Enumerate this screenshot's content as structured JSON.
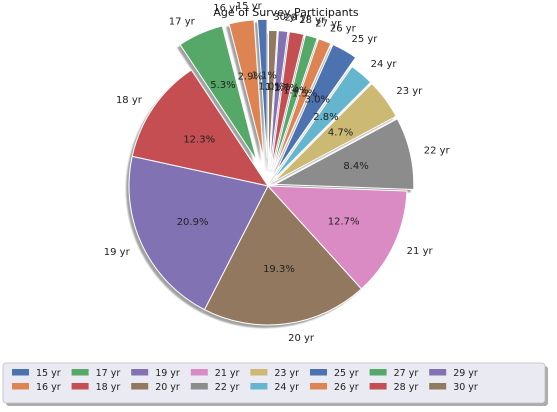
{
  "chart_data": {
    "type": "pie",
    "title": "Age of Survey Participants",
    "startangle_deg": 90,
    "counterclock": true,
    "shadow": true,
    "legend": {
      "placement": "bottom",
      "ncol": 9
    },
    "slices": [
      {
        "label": "15 yr",
        "value": 1.1,
        "pct_label": "1.1%",
        "color": "#4c72b0",
        "explode": 0.2
      },
      {
        "label": "16 yr",
        "value": 2.9,
        "pct_label": "2.9%",
        "color": "#dd8452",
        "explode": 0.2
      },
      {
        "label": "17 yr",
        "value": 5.3,
        "pct_label": "5.3%",
        "color": "#55a868",
        "explode": 0.2
      },
      {
        "label": "18 yr",
        "value": 12.3,
        "pct_label": "12.3%",
        "color": "#c44e52",
        "explode": 0
      },
      {
        "label": "19 yr",
        "value": 20.9,
        "pct_label": "20.9%",
        "color": "#8172b3",
        "explode": 0
      },
      {
        "label": "20 yr",
        "value": 19.3,
        "pct_label": "19.3%",
        "color": "#937860",
        "explode": 0
      },
      {
        "label": "21 yr",
        "value": 12.7,
        "pct_label": "12.7%",
        "color": "#da8bc3",
        "explode": 0
      },
      {
        "label": "22 yr",
        "value": 8.4,
        "pct_label": "8.4%",
        "color": "#8c8c8c",
        "explode": 0.05
      },
      {
        "label": "23 yr",
        "value": 4.7,
        "pct_label": "4.7%",
        "color": "#ccb974",
        "explode": 0.05
      },
      {
        "label": "24 yr",
        "value": 2.8,
        "pct_label": "2.8%",
        "color": "#64b5cd",
        "explode": 0.05
      },
      {
        "label": "25 yr",
        "value": 3.0,
        "pct_label": "3.0%",
        "color": "#4c72b0",
        "explode": 0.12
      },
      {
        "label": "26 yr",
        "value": 1.5,
        "pct_label": "1.5%",
        "color": "#dd8452",
        "explode": 0.12
      },
      {
        "label": "27 yr",
        "value": 1.4,
        "pct_label": "1.4%",
        "color": "#55a868",
        "explode": 0.12
      },
      {
        "label": "28 yr",
        "value": 1.7,
        "pct_label": "1.7%",
        "color": "#c44e52",
        "explode": 0.12
      },
      {
        "label": "29 yr",
        "value": 1.1,
        "pct_label": "1.1%",
        "color": "#8172b3",
        "explode": 0.12
      },
      {
        "label": "30 yr",
        "value": 1.0,
        "pct_label": "1.0%",
        "color": "#937860",
        "explode": 0.12
      }
    ]
  }
}
